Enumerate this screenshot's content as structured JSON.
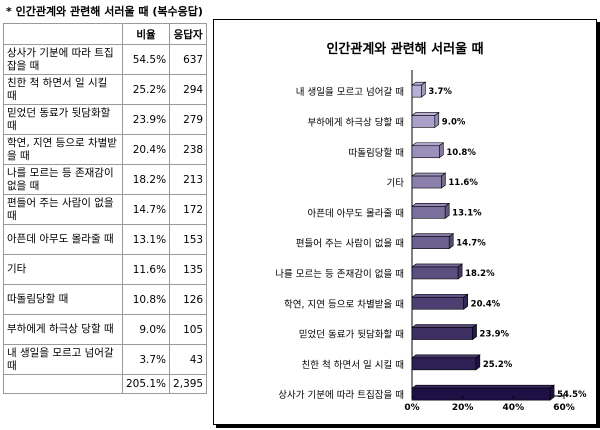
{
  "heading": "* 인간관계와 관련해 서러울 때 (복수응답)",
  "table": {
    "headers": [
      "",
      "비율",
      "응답자"
    ],
    "rows": [
      {
        "label": "상사가 기분에 따라 트집잡을 때",
        "pct": "54.5%",
        "count": "637"
      },
      {
        "label": "친한 척 하면서 일 시킬 때",
        "pct": "25.2%",
        "count": "294"
      },
      {
        "label": "믿었던 동료가 뒷담화할 때",
        "pct": "23.9%",
        "count": "279"
      },
      {
        "label": "학연, 지연 등으로 차별받을 때",
        "pct": "20.4%",
        "count": "238"
      },
      {
        "label": "나를 모르는 등 존재감이 없을 때",
        "pct": "18.2%",
        "count": "213"
      },
      {
        "label": "편들어 주는 사람이 없을 때",
        "pct": "14.7%",
        "count": "172"
      },
      {
        "label": "아픈데 아무도 몰라줄 때",
        "pct": "13.1%",
        "count": "153"
      },
      {
        "label": "기타",
        "pct": "11.6%",
        "count": "135"
      },
      {
        "label": "따돌림당할 때",
        "pct": "10.8%",
        "count": "126"
      },
      {
        "label": "부하에게 하극상 당할 때",
        "pct": "9.0%",
        "count": "105"
      },
      {
        "label": "내 생일을 모르고 넘어갈 때",
        "pct": "3.7%",
        "count": "43"
      }
    ],
    "total": {
      "label": "",
      "pct": "205.1%",
      "count": "2,395"
    }
  },
  "chart_data": {
    "type": "bar",
    "orientation": "horizontal",
    "title": "인간관계와 관련해 서러울 때",
    "categories": [
      "내 생일을 모르고 넘어갈 때",
      "부하에게 하극상 당할 때",
      "따돌림당할 때",
      "기타",
      "아픈데 아무도 몰라줄 때",
      "편들어 주는 사람이 없을 때",
      "나를 모르는 등 존재감이 없을 때",
      "학연, 지연 등으로 차별받을 때",
      "믿었던 동료가 뒷담화할 때",
      "친한 척 하면서 일 시킬 때",
      "상사가 기분에 따라 트집잡을 때"
    ],
    "values": [
      3.7,
      9.0,
      10.8,
      11.6,
      13.1,
      14.7,
      18.2,
      20.4,
      23.9,
      25.2,
      54.5
    ],
    "data_labels": [
      "3.7%",
      "9.0%",
      "10.8%",
      "11.6%",
      "13.1%",
      "14.7%",
      "18.2%",
      "20.4%",
      "23.9%",
      "25.2%",
      "54.5%"
    ],
    "xlim": [
      0,
      60
    ],
    "xticks": [
      "0%",
      "20%",
      "40%",
      "60%"
    ],
    "grid": false,
    "legend": "none",
    "colors": {
      "bar_start": "#b9b0d8",
      "bar_end": "#1e0f45",
      "bar_edge": "#000000"
    }
  }
}
